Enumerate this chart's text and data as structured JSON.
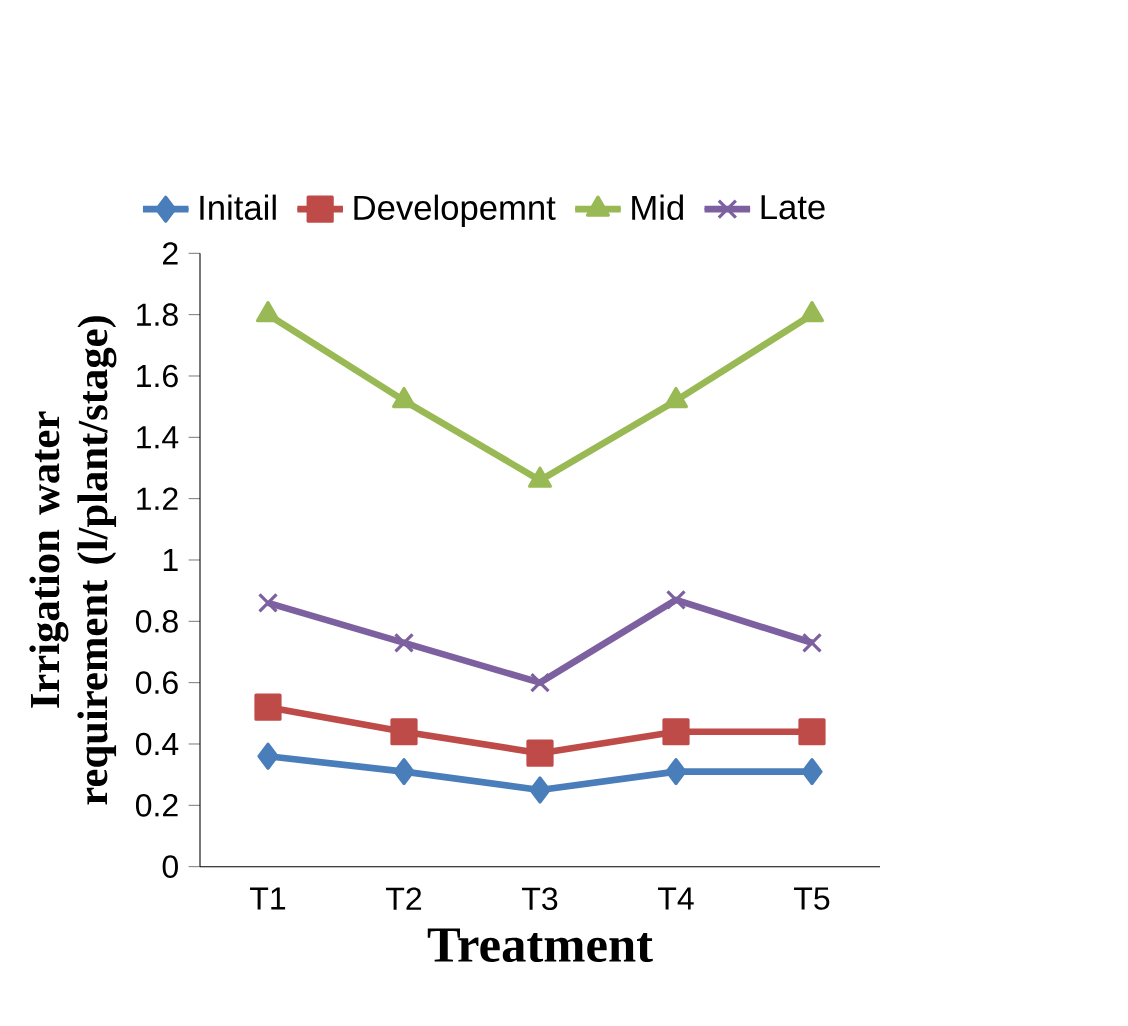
{
  "chart_data": {
    "type": "line",
    "xlabel": "Treatment",
    "ylabel": "Irrigation water requirement (l/plant/stage)",
    "categories": [
      "T1",
      "T2",
      "T3",
      "T4",
      "T5"
    ],
    "series": [
      {
        "name": "Initail",
        "color": "#4a7ebb",
        "marker": "diamond",
        "values": [
          0.36,
          0.31,
          0.25,
          0.31,
          0.31
        ]
      },
      {
        "name": "Developemnt",
        "color": "#be4b48",
        "marker": "square",
        "values": [
          0.52,
          0.44,
          0.37,
          0.44,
          0.44
        ]
      },
      {
        "name": "Mid",
        "color": "#98b954",
        "marker": "triangle",
        "values": [
          1.8,
          1.52,
          1.26,
          1.52,
          1.8
        ]
      },
      {
        "name": "Late",
        "color": "#7d60a0",
        "marker": "cross",
        "values": [
          0.86,
          0.73,
          0.6,
          0.87,
          0.73
        ]
      }
    ],
    "ylim": [
      0,
      2
    ],
    "yticks": [
      0,
      0.2,
      0.4,
      0.6,
      0.8,
      1,
      1.2,
      1.4,
      1.6,
      1.8,
      2
    ],
    "grid": false,
    "legend": "top"
  }
}
